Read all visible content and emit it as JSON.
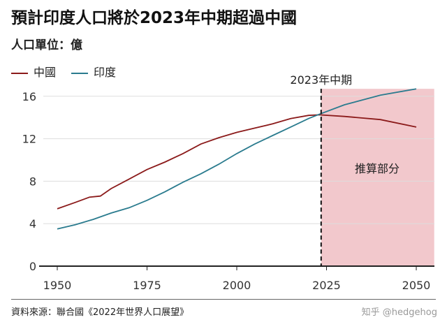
{
  "title": "預計印度人口將於2023年中期超過中國",
  "unit_label": "人口單位：億",
  "source": "資料來源：聯合國《2022年世界人口展望》",
  "watermark": "知乎 @hedgehog",
  "chart_data": {
    "type": "line",
    "title": "預計印度人口將於2023年中期超過中國",
    "ylabel": "人口單位：億",
    "xlim": [
      1945,
      2055
    ],
    "ylim": [
      0,
      16.7
    ],
    "xticks": [
      1950,
      1975,
      2000,
      2025,
      2050
    ],
    "yticks": [
      0,
      4,
      8,
      12,
      16
    ],
    "grid": "horizontal",
    "legend": "top-left",
    "annotation": {
      "x": 2023.5,
      "label": "2023年中期",
      "shaded_label": "推算部分",
      "shade_color": "#f2c8cc"
    },
    "series": [
      {
        "name": "中國",
        "color": "#8b1a1a",
        "x": [
          1950,
          1955,
          1959,
          1962,
          1965,
          1970,
          1975,
          1980,
          1985,
          1990,
          1995,
          2000,
          2005,
          2010,
          2015,
          2020,
          2023,
          2030,
          2040,
          2050
        ],
        "values": [
          5.4,
          6.0,
          6.5,
          6.6,
          7.3,
          8.2,
          9.1,
          9.8,
          10.6,
          11.5,
          12.1,
          12.6,
          13.0,
          13.4,
          13.9,
          14.2,
          14.25,
          14.1,
          13.8,
          13.1
        ]
      },
      {
        "name": "印度",
        "color": "#2a7b8e",
        "x": [
          1950,
          1955,
          1960,
          1965,
          1970,
          1975,
          1980,
          1985,
          1990,
          1995,
          2000,
          2005,
          2010,
          2015,
          2020,
          2023,
          2030,
          2040,
          2050
        ],
        "values": [
          3.5,
          3.9,
          4.4,
          5.0,
          5.5,
          6.2,
          7.0,
          7.9,
          8.7,
          9.6,
          10.6,
          11.5,
          12.3,
          13.1,
          13.9,
          14.3,
          15.2,
          16.1,
          16.7
        ]
      }
    ]
  }
}
